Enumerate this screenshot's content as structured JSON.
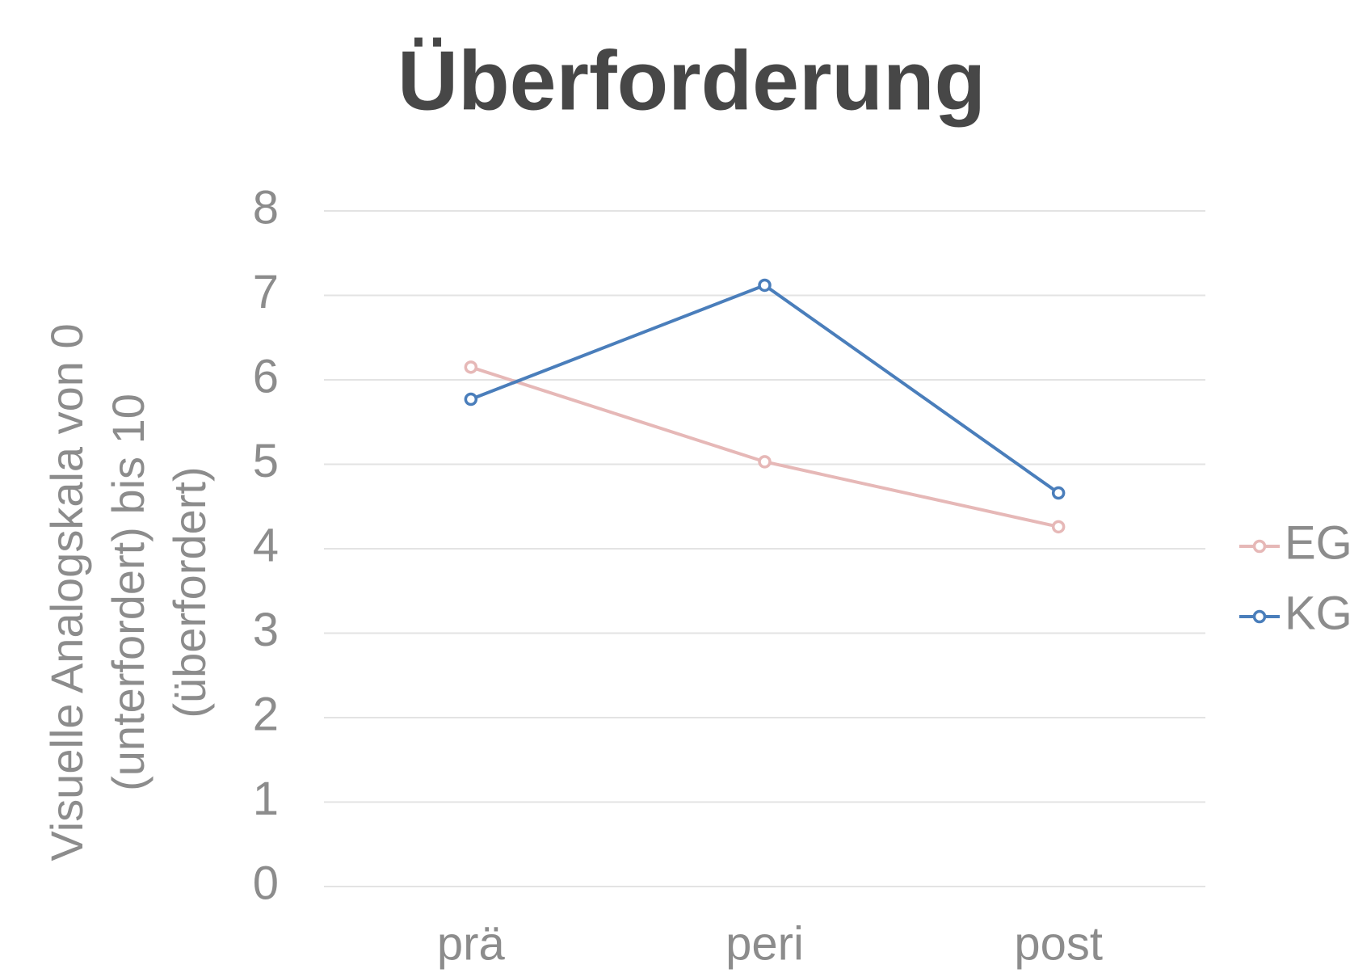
{
  "chart_data": {
    "type": "line",
    "title": "Überforderung",
    "y_label": [
      "Visuelle Analogskala von 0",
      "(unterfordert) bis 10",
      "(überfordert)"
    ],
    "categories": [
      "prä",
      "peri",
      "post"
    ],
    "series": [
      {
        "name": "EG",
        "color": "#e6b8b7",
        "values": [
          6.15,
          5.03,
          4.26
        ]
      },
      {
        "name": "KG",
        "color": "#4a7ebb",
        "values": [
          5.77,
          7.12,
          4.66
        ]
      }
    ],
    "ylim": [
      0,
      8
    ],
    "yticks": [
      0,
      1,
      2,
      3,
      4,
      5,
      6,
      7,
      8
    ],
    "grid": true,
    "legend": "right"
  }
}
